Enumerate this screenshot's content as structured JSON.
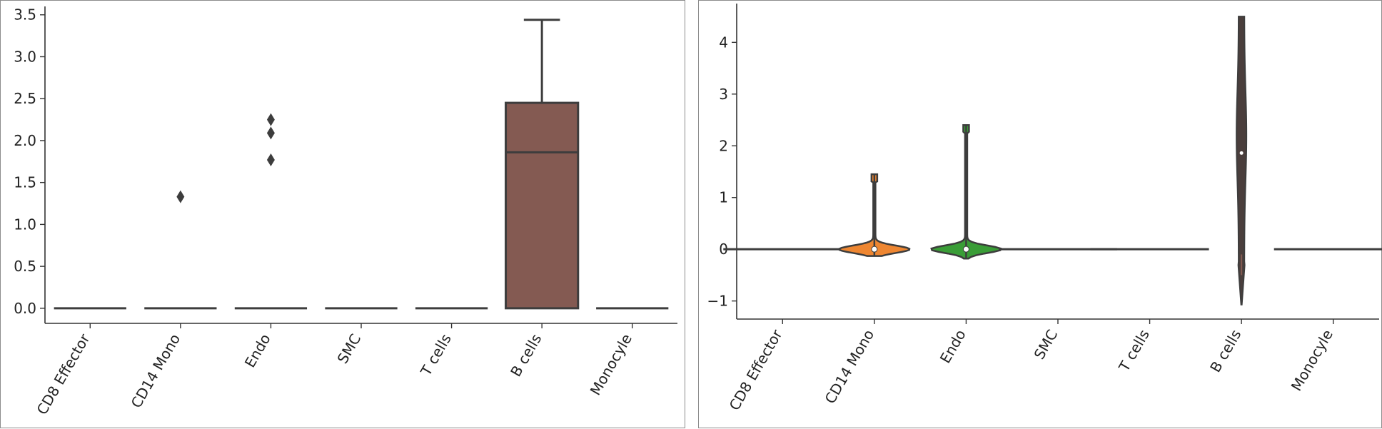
{
  "chart_data": [
    {
      "type": "box",
      "title": "",
      "xlabel": "",
      "ylabel": "",
      "categories": [
        "CD8 Effector",
        "CD14 Mono",
        "Endo",
        "SMC",
        "T cells",
        "B cells",
        "Monocyle"
      ],
      "ylim": [
        -0.18,
        3.6
      ],
      "yticks": [
        0.0,
        0.5,
        1.0,
        1.5,
        2.0,
        2.5,
        3.0,
        3.5
      ],
      "ytick_labels": [
        "0.0",
        "0.5",
        "1.0",
        "1.5",
        "2.0",
        "2.5",
        "3.0",
        "3.5"
      ],
      "grid": false,
      "boxes": [
        {
          "category": "CD8 Effector",
          "min": 0,
          "q1": 0,
          "median": 0,
          "q3": 0,
          "max": 0,
          "outliers": []
        },
        {
          "category": "CD14 Mono",
          "min": 0,
          "q1": 0,
          "median": 0,
          "q3": 0,
          "max": 0,
          "outliers": [
            1.33
          ]
        },
        {
          "category": "Endo",
          "min": 0,
          "q1": 0,
          "median": 0,
          "q3": 0,
          "max": 0,
          "outliers": [
            1.77,
            2.09,
            2.25
          ]
        },
        {
          "category": "SMC",
          "min": 0,
          "q1": 0,
          "median": 0,
          "q3": 0,
          "max": 0,
          "outliers": []
        },
        {
          "category": "T cells",
          "min": 0,
          "q1": 0,
          "median": 0,
          "q3": 0,
          "max": 0,
          "outliers": []
        },
        {
          "category": "B cells",
          "min": 0,
          "q1": 0,
          "median": 1.86,
          "q3": 2.45,
          "max": 3.44,
          "outliers": []
        },
        {
          "category": "Monocyle",
          "min": 0,
          "q1": 0,
          "median": 0,
          "q3": 0,
          "max": 0,
          "outliers": []
        }
      ],
      "colors": {
        "B cells": "#845a52",
        "line": "#3d3d3d"
      }
    },
    {
      "type": "violin",
      "title": "",
      "xlabel": "",
      "ylabel": "",
      "categories": [
        "CD8 Effector",
        "CD14 Mono",
        "Endo",
        "SMC",
        "T cells",
        "B cells",
        "Monocyle"
      ],
      "ylim": [
        -1.35,
        4.75
      ],
      "yticks": [
        -1,
        0,
        1,
        2,
        3,
        4
      ],
      "ytick_labels": [
        "−1",
        "0",
        "1",
        "2",
        "3",
        "4"
      ],
      "grid": false,
      "violins": [
        {
          "category": "CD8 Effector",
          "min": 0,
          "max": 0,
          "median": 0,
          "color": "#3d3d3d"
        },
        {
          "category": "CD14 Mono",
          "min": -0.13,
          "max": 1.45,
          "median": 0,
          "color": "#ee8631"
        },
        {
          "category": "Endo",
          "min": -0.18,
          "max": 2.4,
          "median": 0,
          "color": "#3a9d37"
        },
        {
          "category": "SMC",
          "min": 0,
          "max": 0,
          "median": 0,
          "color": "#3d3d3d"
        },
        {
          "category": "T cells",
          "min": 0,
          "max": 0,
          "median": 0,
          "color": "#3d3d3d"
        },
        {
          "category": "B cells",
          "min": -1.07,
          "max": 4.5,
          "median": 1.86,
          "color": "#845a52"
        },
        {
          "category": "Monocyle",
          "min": 0,
          "max": 0,
          "median": 0,
          "color": "#3d3d3d"
        }
      ]
    }
  ]
}
